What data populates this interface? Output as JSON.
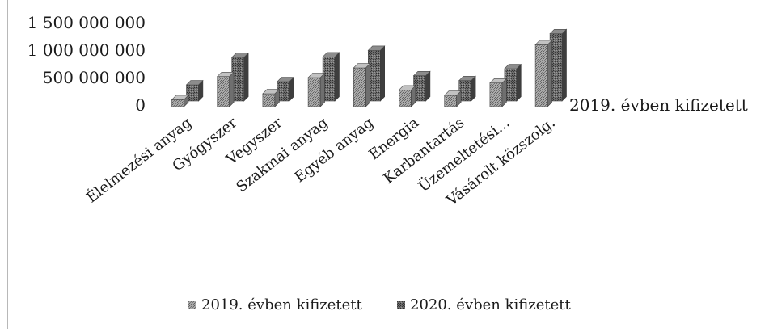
{
  "chart_data": {
    "type": "bar",
    "variant": "3d-clustered-column",
    "categories": [
      "Élelmezési anyag",
      "Gyógyszer",
      "Vegyszer",
      "Szakmai anyag",
      "Egyéb anyag",
      "Energia",
      "Karbantartás",
      "Üzemeltetési...",
      "Vásárolt közszolg."
    ],
    "series": [
      {
        "name": "2019. évben kifizetett",
        "values": [
          130000000,
          560000000,
          240000000,
          540000000,
          720000000,
          310000000,
          210000000,
          440000000,
          1150000000
        ],
        "color": "#8e8e8e"
      },
      {
        "name": "2020. évben kifizetett",
        "values": [
          300000000,
          810000000,
          360000000,
          820000000,
          940000000,
          470000000,
          380000000,
          600000000,
          1250000000
        ],
        "color": "#5a5a5a"
      }
    ],
    "y_ticks": [
      0,
      500000000,
      1000000000,
      1500000000
    ],
    "y_tick_labels": [
      "0",
      "500 000 000",
      "1 000 000 000",
      "1 500 000 000"
    ],
    "ylim": [
      0,
      1500000000
    ],
    "depth_axis_label": "2019. évben kifizetett",
    "legend_position": "bottom",
    "grid": false,
    "title": "",
    "xlabel": "",
    "ylabel": ""
  }
}
